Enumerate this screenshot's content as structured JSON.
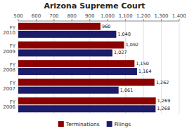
{
  "chart_data": {
    "type": "bar",
    "orientation": "horizontal",
    "title": "Arizona Supreme Court",
    "categories": [
      "FY\n2010",
      "FY\n2009",
      "FY\n2008",
      "FY\n2007",
      "FY\n2006"
    ],
    "series": [
      {
        "name": "Terminations",
        "color": "#8B0000",
        "values": [
          960,
          1092,
          1150,
          1262,
          1269
        ],
        "value_labels": [
          "960",
          "1,092",
          "1,150",
          "1,262",
          "1,269"
        ]
      },
      {
        "name": "Filings",
        "color": "#1C1C6B",
        "values": [
          1048,
          1027,
          1164,
          1061,
          1268
        ],
        "value_labels": [
          "1,048",
          "1,027",
          "1,164",
          "1,061",
          "1,268"
        ]
      }
    ],
    "xlim": [
      500,
      1400
    ],
    "xticks": [
      500,
      600,
      700,
      800,
      900,
      {
        "value": 1000,
        "label": "1,000"
      },
      {
        "value": 1100,
        "label": "1,100"
      },
      {
        "value": 1200,
        "label": "1,200"
      },
      {
        "value": 1300,
        "label": "1,300"
      },
      {
        "value": 1400,
        "label": "1,400"
      }
    ],
    "grid": true,
    "data_labels": true,
    "legend": "bottom"
  }
}
